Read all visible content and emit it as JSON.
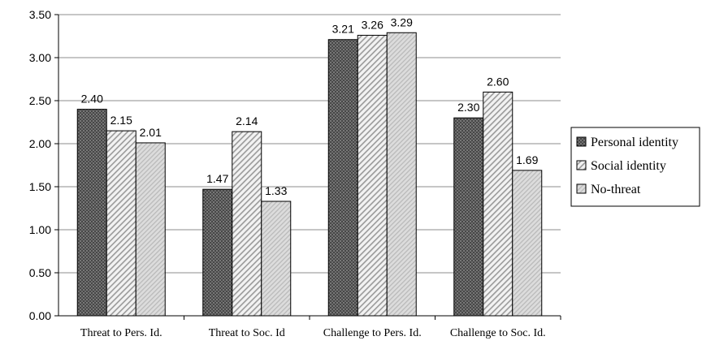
{
  "chart_data": {
    "type": "bar",
    "categories": [
      "Threat to Pers. Id.",
      "Threat to Soc. Id",
      "Challenge to Pers. Id.",
      "Challenge to Soc. Id."
    ],
    "series": [
      {
        "name": "Personal identity",
        "values": [
          2.4,
          1.47,
          3.21,
          2.3
        ],
        "labels": [
          "2.40",
          "1.47",
          "3.21",
          "2.30"
        ],
        "pattern": "dots"
      },
      {
        "name": "Social identity",
        "values": [
          2.15,
          2.14,
          3.26,
          2.6
        ],
        "labels": [
          "2.15",
          "2.14",
          "3.26",
          "2.60"
        ],
        "pattern": "diagonal-dense"
      },
      {
        "name": "No-threat",
        "values": [
          2.01,
          1.33,
          3.29,
          1.69
        ],
        "labels": [
          "2.01",
          "1.33",
          "3.29",
          "1.69"
        ],
        "pattern": "diagonal-light"
      }
    ],
    "ylim": [
      0,
      3.5
    ],
    "yticks": [
      "0.00",
      "0.50",
      "1.00",
      "1.50",
      "2.00",
      "2.50",
      "3.00",
      "3.50"
    ],
    "grid": true,
    "legend_position": "right",
    "title": "",
    "xlabel": "",
    "ylabel": ""
  }
}
